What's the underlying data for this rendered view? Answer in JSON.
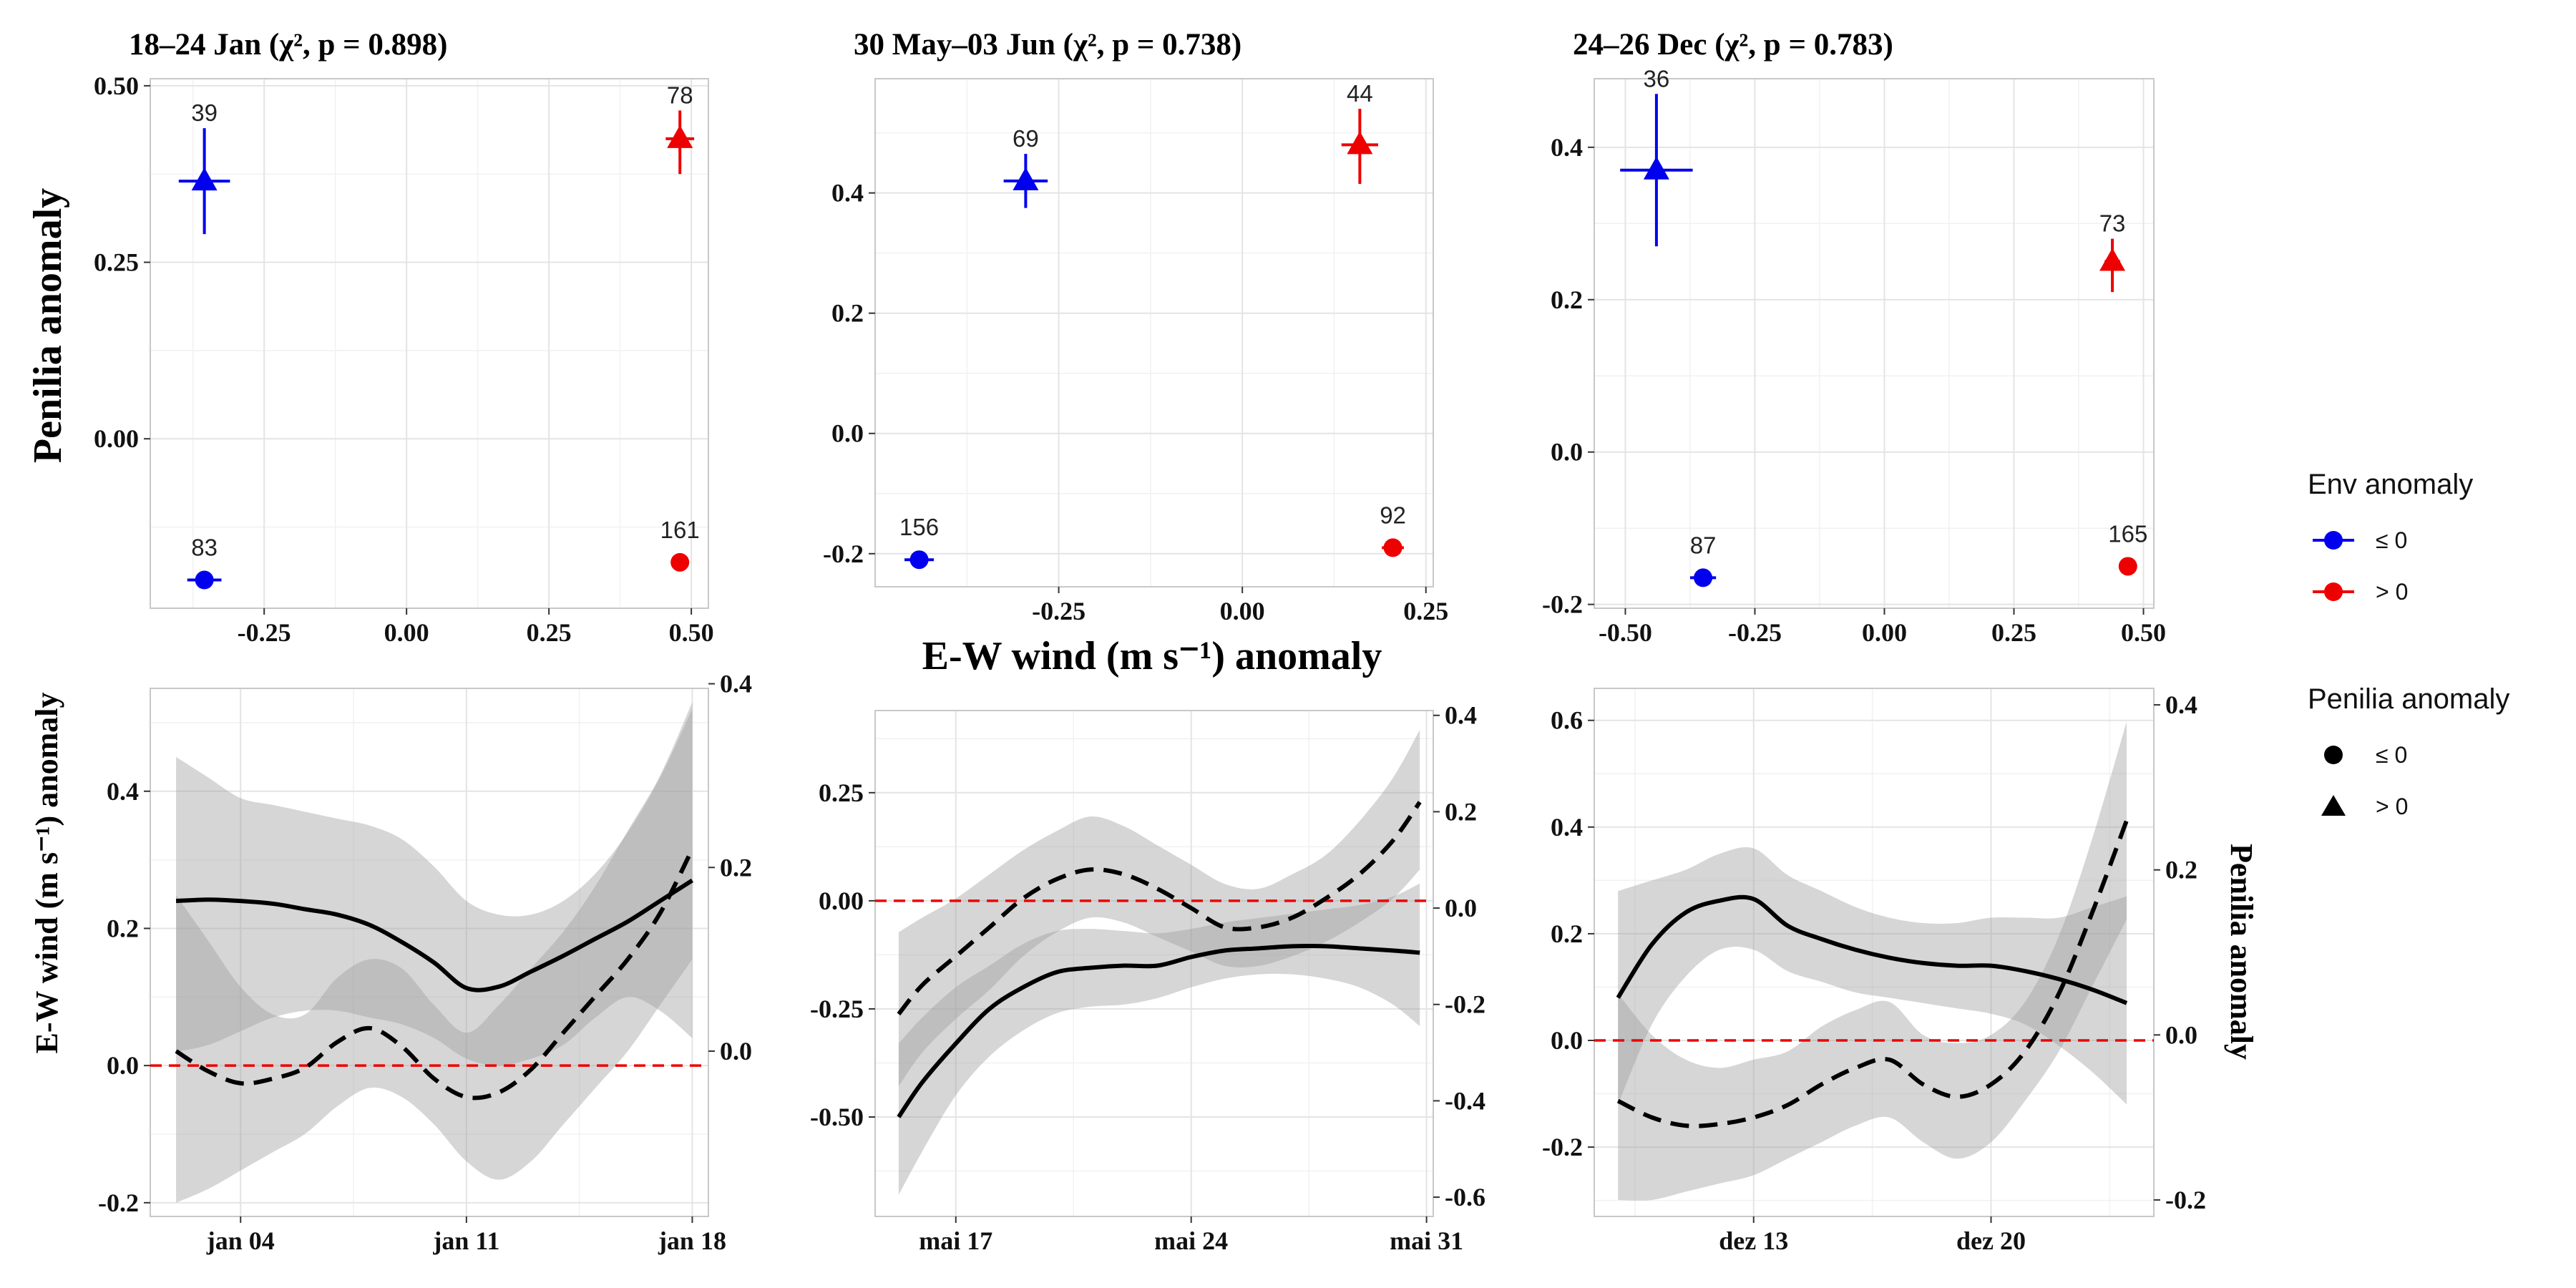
{
  "x_axis_label": "E-W wind (m s⁻¹) anomaly",
  "top_y_label": "Penilia anomaly",
  "bottom_y_label": "E-W wind (m s⁻¹) anomaly",
  "bottom_y2_label": "Penilia anomaly",
  "legend": {
    "env_title": "Env anomaly",
    "env_items": [
      {
        "label": "≤ 0",
        "color": "#0000ee"
      },
      {
        "label": "> 0",
        "color": "#ee0000"
      }
    ],
    "penilia_title": "Penilia anomaly",
    "penilia_items": [
      {
        "label": "≤ 0",
        "shape": "circle"
      },
      {
        "label": "> 0",
        "shape": "triangle"
      }
    ]
  },
  "chart_data": [
    {
      "type": "scatter",
      "title": "18–24 Jan (χ², p = 0.898)",
      "xlabel": "E-W wind (m s⁻¹) anomaly",
      "ylabel": "Penilia anomaly",
      "xlim": [
        -0.45,
        0.53
      ],
      "ylim": [
        -0.24,
        0.51
      ],
      "x_ticks": [
        -0.25,
        0.0,
        0.25,
        0.5
      ],
      "x_tick_labels": [
        "-0.25",
        "0.00",
        "0.25",
        "0.50"
      ],
      "y_ticks": [
        0.0,
        0.25,
        0.5
      ],
      "y_tick_labels": [
        "0.00",
        "0.25",
        "0.50"
      ],
      "points": [
        {
          "env": "≤ 0",
          "penilia": "> 0",
          "x": -0.355,
          "y": 0.365,
          "xerr": 0.045,
          "ylow": 0.29,
          "yhigh": 0.44,
          "n": "39"
        },
        {
          "env": "> 0",
          "penilia": "> 0",
          "x": 0.48,
          "y": 0.425,
          "xerr": 0.025,
          "ylow": 0.375,
          "yhigh": 0.465,
          "n": "78"
        },
        {
          "env": "≤ 0",
          "penilia": "≤ 0",
          "x": -0.355,
          "y": -0.2,
          "xerr": 0.03,
          "ylow": -0.2,
          "yhigh": -0.2,
          "n": "83"
        },
        {
          "env": "> 0",
          "penilia": "≤ 0",
          "x": 0.48,
          "y": -0.175,
          "xerr": 0.015,
          "ylow": -0.175,
          "yhigh": -0.175,
          "n": "161"
        }
      ]
    },
    {
      "type": "scatter",
      "title": "30 May–03 Jun (χ², p = 0.738)",
      "xlabel": "E-W wind (m s⁻¹) anomaly",
      "ylabel": "Penilia anomaly",
      "xlim": [
        -0.5,
        0.26
      ],
      "ylim": [
        -0.255,
        0.59
      ],
      "x_ticks": [
        -0.25,
        0.0,
        0.25
      ],
      "x_tick_labels": [
        "-0.25",
        "0.00",
        "0.25"
      ],
      "y_ticks": [
        -0.2,
        0.0,
        0.2,
        0.4
      ],
      "y_tick_labels": [
        "-0.2",
        "0.0",
        "0.2",
        "0.4"
      ],
      "points": [
        {
          "env": "≤ 0",
          "penilia": "> 0",
          "x": -0.295,
          "y": 0.42,
          "xerr": 0.03,
          "ylow": 0.375,
          "yhigh": 0.465,
          "n": "69"
        },
        {
          "env": "> 0",
          "penilia": "> 0",
          "x": 0.16,
          "y": 0.48,
          "xerr": 0.025,
          "ylow": 0.415,
          "yhigh": 0.54,
          "n": "44"
        },
        {
          "env": "≤ 0",
          "penilia": "≤ 0",
          "x": -0.44,
          "y": -0.21,
          "xerr": 0.02,
          "ylow": -0.21,
          "yhigh": -0.21,
          "n": "156"
        },
        {
          "env": "> 0",
          "penilia": "≤ 0",
          "x": 0.205,
          "y": -0.19,
          "xerr": 0.015,
          "ylow": -0.19,
          "yhigh": -0.19,
          "n": "92"
        }
      ]
    },
    {
      "type": "scatter",
      "title": "24–26 Dec (χ², p = 0.783)",
      "xlabel": "E-W wind (m s⁻¹) anomaly",
      "ylabel": "Penilia anomaly",
      "xlim": [
        -0.56,
        0.52
      ],
      "ylim": [
        -0.205,
        0.49
      ],
      "x_ticks": [
        -0.5,
        -0.25,
        0.0,
        0.25,
        0.5
      ],
      "x_tick_labels": [
        "-0.50",
        "-0.25",
        "0.00",
        "0.25",
        "0.50"
      ],
      "y_ticks": [
        -0.2,
        0.0,
        0.2,
        0.4
      ],
      "y_tick_labels": [
        "-0.2",
        "0.0",
        "0.2",
        "0.4"
      ],
      "points": [
        {
          "env": "≤ 0",
          "penilia": "> 0",
          "x": -0.44,
          "y": 0.37,
          "xerr": 0.07,
          "ylow": 0.27,
          "yhigh": 0.47,
          "n": "36"
        },
        {
          "env": "> 0",
          "penilia": "> 0",
          "x": 0.44,
          "y": 0.25,
          "xerr": 0.015,
          "ylow": 0.21,
          "yhigh": 0.28,
          "n": "73"
        },
        {
          "env": "≤ 0",
          "penilia": "≤ 0",
          "x": -0.35,
          "y": -0.165,
          "xerr": 0.025,
          "ylow": -0.165,
          "yhigh": -0.165,
          "n": "87"
        },
        {
          "env": "> 0",
          "penilia": "≤ 0",
          "x": 0.47,
          "y": -0.15,
          "xerr": 0.015,
          "ylow": -0.15,
          "yhigh": -0.15,
          "n": "165"
        }
      ]
    },
    {
      "type": "line",
      "title": "",
      "xlabel": "",
      "ylabel": "E-W wind (m s⁻¹) anomaly",
      "y2label": "Penilia anomaly",
      "x_unit": "day of January",
      "xlim": [
        1.2,
        18.5
      ],
      "ylim": [
        -0.22,
        0.55
      ],
      "y2lim": [
        -0.18,
        0.395
      ],
      "x_ticks": [
        4,
        11,
        18
      ],
      "x_tick_labels": [
        "jan 04",
        "jan 11",
        "jan 18"
      ],
      "y_ticks": [
        -0.2,
        0.0,
        0.2,
        0.4
      ],
      "y_tick_labels": [
        "-0.2",
        "0.0",
        "0.2",
        "0.4"
      ],
      "y2_ticks": [
        0.0,
        0.2,
        0.4
      ],
      "y2_tick_labels": [
        "0.0",
        "0.2",
        "0.4"
      ],
      "zero_line": 0,
      "series": [
        {
          "style": "solid",
          "axis": "left",
          "x": [
            2,
            3,
            4,
            5,
            6,
            7,
            8,
            9,
            10,
            11,
            12,
            13,
            14,
            15,
            16,
            17,
            18
          ],
          "y": [
            0.24,
            0.242,
            0.24,
            0.236,
            0.228,
            0.22,
            0.205,
            0.18,
            0.15,
            0.113,
            0.115,
            0.137,
            0.16,
            0.185,
            0.21,
            0.24,
            0.27
          ],
          "band_low": [
            0.02,
            0.03,
            0.05,
            0.07,
            0.08,
            0.08,
            0.07,
            0.06,
            0.04,
            0.01,
            0.0,
            0.01,
            0.03,
            0.07,
            0.1,
            0.08,
            0.04
          ],
          "band_high": [
            0.45,
            0.42,
            0.39,
            0.38,
            0.37,
            0.36,
            0.35,
            0.33,
            0.29,
            0.24,
            0.22,
            0.22,
            0.24,
            0.28,
            0.34,
            0.42,
            0.52
          ]
        },
        {
          "style": "dashed",
          "axis": "right",
          "x": [
            2,
            3,
            4,
            5,
            6,
            7,
            8,
            9,
            10,
            11,
            12,
            13,
            14,
            15,
            16,
            17,
            18
          ],
          "y": [
            0.0,
            -0.022,
            -0.035,
            -0.03,
            -0.018,
            0.01,
            0.025,
            0.005,
            -0.03,
            -0.05,
            -0.045,
            -0.02,
            0.02,
            0.06,
            0.1,
            0.15,
            0.22
          ],
          "band_low": [
            -0.165,
            -0.15,
            -0.13,
            -0.11,
            -0.09,
            -0.06,
            -0.04,
            -0.05,
            -0.08,
            -0.12,
            -0.14,
            -0.12,
            -0.08,
            -0.04,
            0.0,
            0.05,
            0.1
          ],
          "band_high": [
            0.17,
            0.12,
            0.07,
            0.04,
            0.04,
            0.08,
            0.1,
            0.09,
            0.05,
            0.02,
            0.05,
            0.09,
            0.13,
            0.18,
            0.24,
            0.3,
            0.38
          ]
        }
      ]
    },
    {
      "type": "line",
      "title": "",
      "xlabel": "E-W wind (m s⁻¹) anomaly",
      "ylabel": "",
      "x_unit": "day of May",
      "xlim": [
        14.6,
        31.2
      ],
      "ylim": [
        -0.73,
        0.44
      ],
      "y2lim": [
        -0.64,
        0.41
      ],
      "x_ticks": [
        17,
        24,
        31
      ],
      "x_tick_labels": [
        "mai 17",
        "mai 24",
        "mai 31"
      ],
      "y_ticks": [
        -0.5,
        -0.25,
        0.0,
        0.25
      ],
      "y_tick_labels": [
        "-0.50",
        "-0.25",
        "0.00",
        "0.25"
      ],
      "y2_ticks": [
        -0.6,
        -0.4,
        -0.2,
        0.0,
        0.2,
        0.4
      ],
      "y2_tick_labels": [
        "-0.6",
        "-0.4",
        "-0.2",
        "0.0",
        "0.2",
        "0.4"
      ],
      "zero_line": 0,
      "series": [
        {
          "style": "solid",
          "axis": "left",
          "x": [
            15.3,
            16,
            17,
            18,
            19,
            20,
            21,
            22,
            23,
            24,
            25,
            26,
            27,
            28,
            29,
            30,
            30.8
          ],
          "y": [
            -0.5,
            -0.42,
            -0.33,
            -0.25,
            -0.2,
            -0.165,
            -0.155,
            -0.15,
            -0.15,
            -0.13,
            -0.115,
            -0.11,
            -0.105,
            -0.105,
            -0.11,
            -0.115,
            -0.12
          ],
          "band_low": [
            -0.68,
            -0.58,
            -0.45,
            -0.36,
            -0.3,
            -0.26,
            -0.245,
            -0.24,
            -0.225,
            -0.2,
            -0.18,
            -0.17,
            -0.17,
            -0.18,
            -0.2,
            -0.24,
            -0.29
          ],
          "band_high": [
            -0.33,
            -0.27,
            -0.2,
            -0.15,
            -0.1,
            -0.07,
            -0.065,
            -0.07,
            -0.075,
            -0.065,
            -0.05,
            -0.04,
            -0.03,
            -0.02,
            -0.01,
            0.01,
            0.04
          ]
        },
        {
          "style": "dashed",
          "axis": "right",
          "x": [
            15.3,
            16,
            17,
            18,
            19,
            20,
            21,
            22,
            23,
            24,
            25,
            26,
            27,
            28,
            29,
            30,
            30.8
          ],
          "y": [
            -0.22,
            -0.16,
            -0.1,
            -0.04,
            0.02,
            0.06,
            0.08,
            0.07,
            0.04,
            0.0,
            -0.04,
            -0.04,
            -0.02,
            0.02,
            0.07,
            0.14,
            0.22
          ],
          "band_low": [
            -0.37,
            -0.3,
            -0.23,
            -0.17,
            -0.1,
            -0.05,
            -0.02,
            -0.03,
            -0.06,
            -0.09,
            -0.12,
            -0.12,
            -0.1,
            -0.07,
            -0.03,
            0.02,
            0.08
          ],
          "band_high": [
            -0.05,
            -0.02,
            0.02,
            0.07,
            0.12,
            0.16,
            0.19,
            0.17,
            0.13,
            0.09,
            0.05,
            0.04,
            0.07,
            0.11,
            0.18,
            0.27,
            0.37
          ]
        }
      ]
    },
    {
      "type": "line",
      "title": "",
      "xlabel": "",
      "ylabel": "",
      "y2label": "Penilia anomaly",
      "x_unit": "day of December",
      "xlim": [
        8.3,
        24.8
      ],
      "ylim": [
        -0.33,
        0.66
      ],
      "y2lim": [
        -0.22,
        0.42
      ],
      "x_ticks": [
        13,
        20
      ],
      "x_tick_labels": [
        "dez 13",
        "dez 20"
      ],
      "y_ticks": [
        -0.2,
        0.0,
        0.2,
        0.4,
        0.6
      ],
      "y_tick_labels": [
        "-0.2",
        "0.0",
        "0.2",
        "0.4",
        "0.6"
      ],
      "y2_ticks": [
        -0.2,
        0.0,
        0.2,
        0.4
      ],
      "y2_tick_labels": [
        "-0.2",
        "0.0",
        "0.2",
        "0.4"
      ],
      "zero_line": 0,
      "series": [
        {
          "style": "solid",
          "axis": "left",
          "x": [
            9,
            10,
            11,
            12,
            13,
            14,
            15,
            16,
            17,
            18,
            19,
            20,
            21,
            22,
            23,
            24
          ],
          "y": [
            0.08,
            0.18,
            0.24,
            0.262,
            0.265,
            0.215,
            0.19,
            0.17,
            0.155,
            0.145,
            0.14,
            0.14,
            0.13,
            0.115,
            0.095,
            0.07
          ],
          "band_low": [
            -0.12,
            0.03,
            0.12,
            0.17,
            0.17,
            0.13,
            0.11,
            0.09,
            0.08,
            0.07,
            0.06,
            0.05,
            0.03,
            -0.01,
            -0.06,
            -0.12
          ],
          "band_high": [
            0.28,
            0.3,
            0.32,
            0.35,
            0.36,
            0.31,
            0.28,
            0.25,
            0.23,
            0.22,
            0.22,
            0.23,
            0.23,
            0.23,
            0.25,
            0.27
          ]
        },
        {
          "style": "dashed",
          "axis": "right",
          "x": [
            9,
            10,
            11,
            12,
            13,
            14,
            15,
            16,
            17,
            18,
            19,
            20,
            21,
            22,
            23,
            24
          ],
          "y": [
            -0.08,
            -0.1,
            -0.11,
            -0.108,
            -0.1,
            -0.085,
            -0.06,
            -0.04,
            -0.03,
            -0.06,
            -0.075,
            -0.06,
            -0.02,
            0.05,
            0.15,
            0.26
          ],
          "band_low": [
            -0.2,
            -0.2,
            -0.19,
            -0.18,
            -0.17,
            -0.15,
            -0.13,
            -0.11,
            -0.1,
            -0.13,
            -0.15,
            -0.13,
            -0.08,
            -0.02,
            0.06,
            0.14
          ],
          "band_high": [
            0.05,
            0.0,
            -0.03,
            -0.04,
            -0.03,
            -0.02,
            0.01,
            0.03,
            0.04,
            0.0,
            -0.01,
            0.0,
            0.04,
            0.12,
            0.24,
            0.38
          ]
        }
      ]
    }
  ]
}
